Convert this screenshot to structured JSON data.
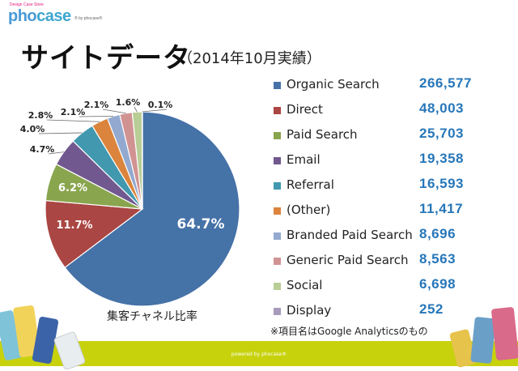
{
  "brand": {
    "tagline": "Design Case Store",
    "logo_pho": "pho",
    "logo_case": "case",
    "sub": "® by phocase®"
  },
  "header": {
    "title": "サイトデータ",
    "subtitle": "（2014年10月実績）"
  },
  "chart_data": {
    "type": "pie",
    "title": "集客チャネル比率",
    "categories": [
      "Organic Search",
      "Direct",
      "Paid Search",
      "Email",
      "Referral",
      "(Other)",
      "Branded Paid Search",
      "Generic Paid Search",
      "Social",
      "Display"
    ],
    "values": [
      266577,
      48003,
      25703,
      19358,
      16593,
      11417,
      8696,
      8563,
      6698,
      252
    ],
    "value_labels": [
      "266,577",
      "48,003",
      "25,703",
      "19,358",
      "16,593",
      "11,417",
      "8,696",
      "8,563",
      "6,698",
      "252"
    ],
    "percent_labels": [
      "64.7%",
      "11.7%",
      "6.2%",
      "4.7%",
      "4.0%",
      "2.8%",
      "2.1%",
      "2.1%",
      "1.6%",
      "0.1%"
    ],
    "colors": [
      "#4572a7",
      "#aa4643",
      "#89a54e",
      "#71588f",
      "#4198af",
      "#db843d",
      "#93a9cf",
      "#d19392",
      "#b9cd96",
      "#a99bbd"
    ],
    "legend_position": "right"
  },
  "note": "※項目名はGoogle Analyticsのもの",
  "footer": "powered by phocase®"
}
